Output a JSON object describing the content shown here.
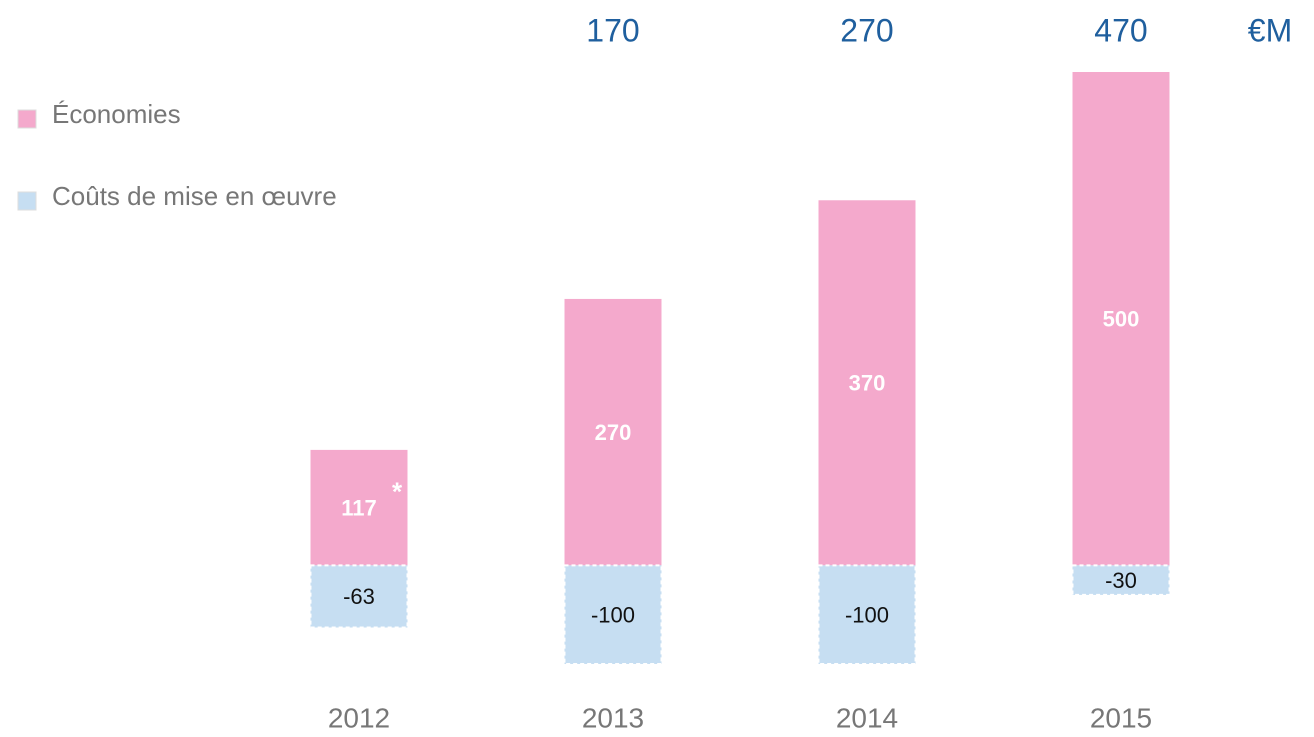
{
  "chart_data": {
    "type": "bar",
    "categories": [
      "2012",
      "2013",
      "2014",
      "2015"
    ],
    "series": [
      {
        "name": "Économies",
        "color": "#f4a9cc",
        "values": [
          117,
          270,
          370,
          500
        ]
      },
      {
        "name": "Coûts de mise en œuvre",
        "color": "#c6def2",
        "values": [
          -63,
          -100,
          -100,
          -30
        ]
      }
    ],
    "net_labels": [
      null,
      170,
      270,
      470
    ],
    "unit": "€M",
    "annotation": "*",
    "ylim": [
      -100,
      500
    ]
  }
}
